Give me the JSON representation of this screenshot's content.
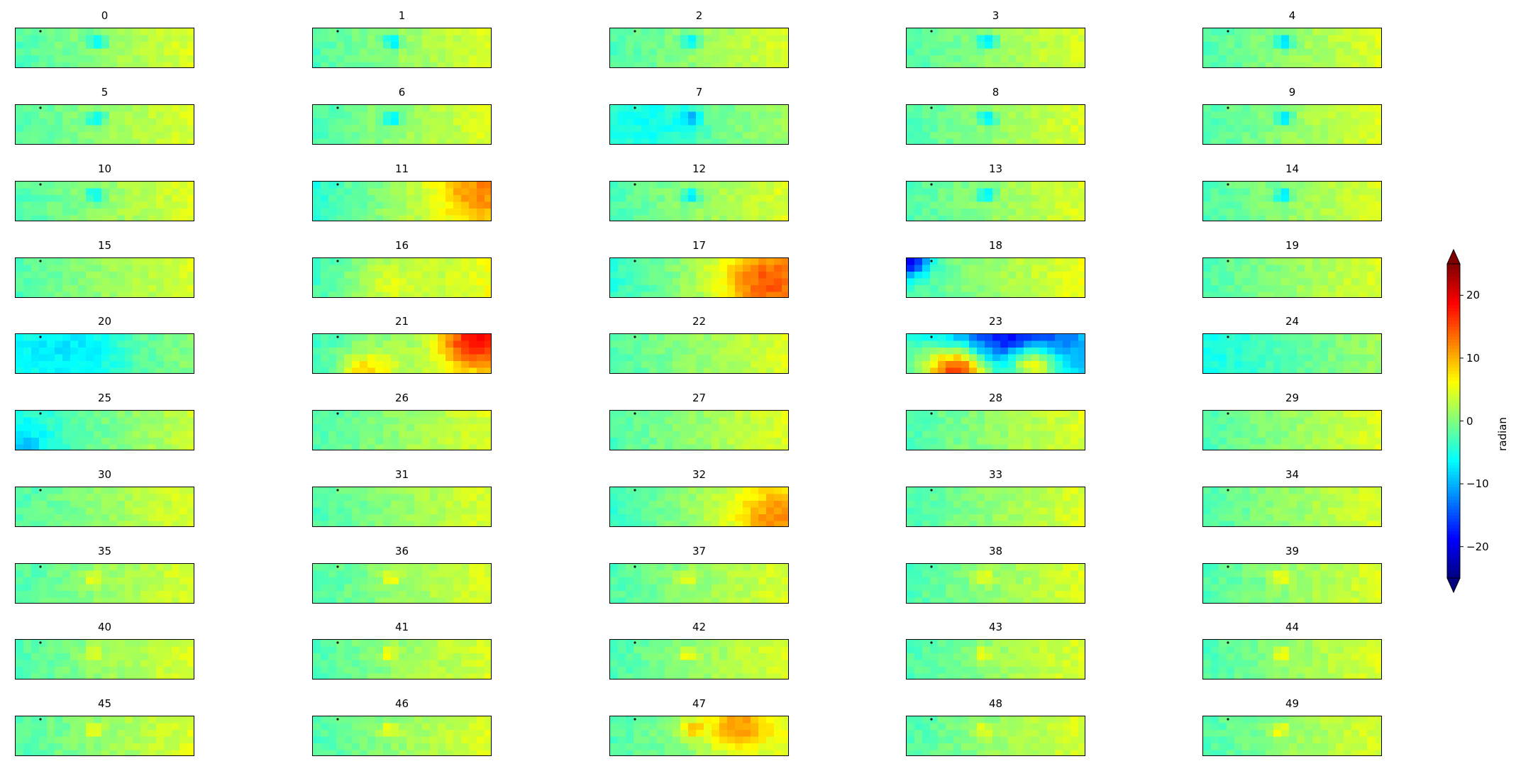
{
  "chart_data": {
    "type": "heatmap",
    "layout": {
      "rows": 10,
      "cols": 5
    },
    "panel_titles": [
      "0",
      "1",
      "2",
      "3",
      "4",
      "5",
      "6",
      "7",
      "8",
      "9",
      "10",
      "11",
      "12",
      "13",
      "14",
      "15",
      "16",
      "17",
      "18",
      "19",
      "20",
      "21",
      "22",
      "23",
      "24",
      "25",
      "26",
      "27",
      "28",
      "29",
      "30",
      "31",
      "32",
      "33",
      "34",
      "35",
      "36",
      "37",
      "38",
      "39",
      "40",
      "41",
      "42",
      "43",
      "44",
      "45",
      "46",
      "47",
      "48",
      "49"
    ],
    "colormap": "jet",
    "colorbar": {
      "label": "radian",
      "vmin": -25,
      "vmax": 25,
      "ticks": [
        -20,
        -10,
        0,
        10,
        20
      ],
      "tick_labels": [
        "−20",
        "−10",
        "0",
        "10",
        "20"
      ],
      "extend": "both"
    },
    "axes_ticks_visible": false
  },
  "colors": {
    "jet_low": "#00007f",
    "jet_mid": "#7fff7f",
    "jet_high": "#7f0000",
    "frame": "#000000"
  }
}
